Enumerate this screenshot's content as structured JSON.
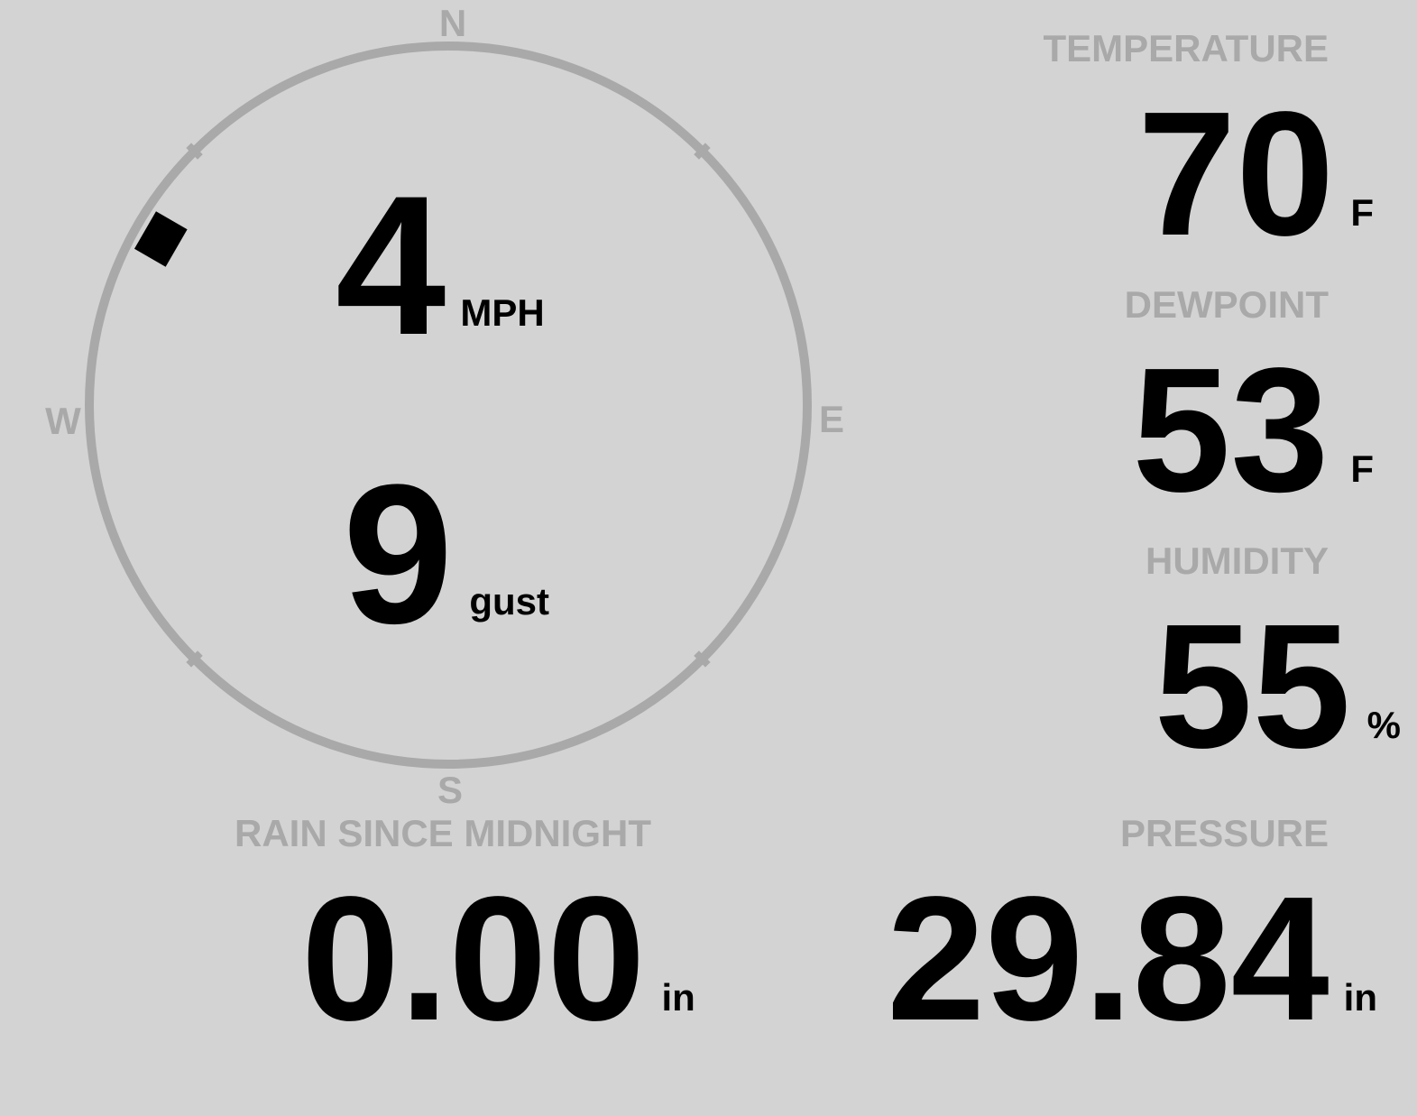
{
  "wind": {
    "speed": "4",
    "speed_unit": "MPH",
    "gust": "9",
    "gust_label": "gust",
    "direction_degrees": 300,
    "cardinals": {
      "n": "N",
      "e": "E",
      "s": "S",
      "w": "W"
    }
  },
  "temperature": {
    "label": "TEMPERATURE",
    "value": "70",
    "unit": "F"
  },
  "dewpoint": {
    "label": "DEWPOINT",
    "value": "53",
    "unit": "F"
  },
  "humidity": {
    "label": "HUMIDITY",
    "value": "55",
    "unit": "%"
  },
  "pressure": {
    "label": "PRESSURE",
    "value": "29.84",
    "unit": "in"
  },
  "rain": {
    "label": "RAIN SINCE MIDNIGHT",
    "value": "0.00",
    "unit": "in"
  },
  "colors": {
    "background": "#d3d3d3",
    "ring": "#a9a9a9",
    "value": "#000000",
    "label": "#a9a9a9"
  }
}
